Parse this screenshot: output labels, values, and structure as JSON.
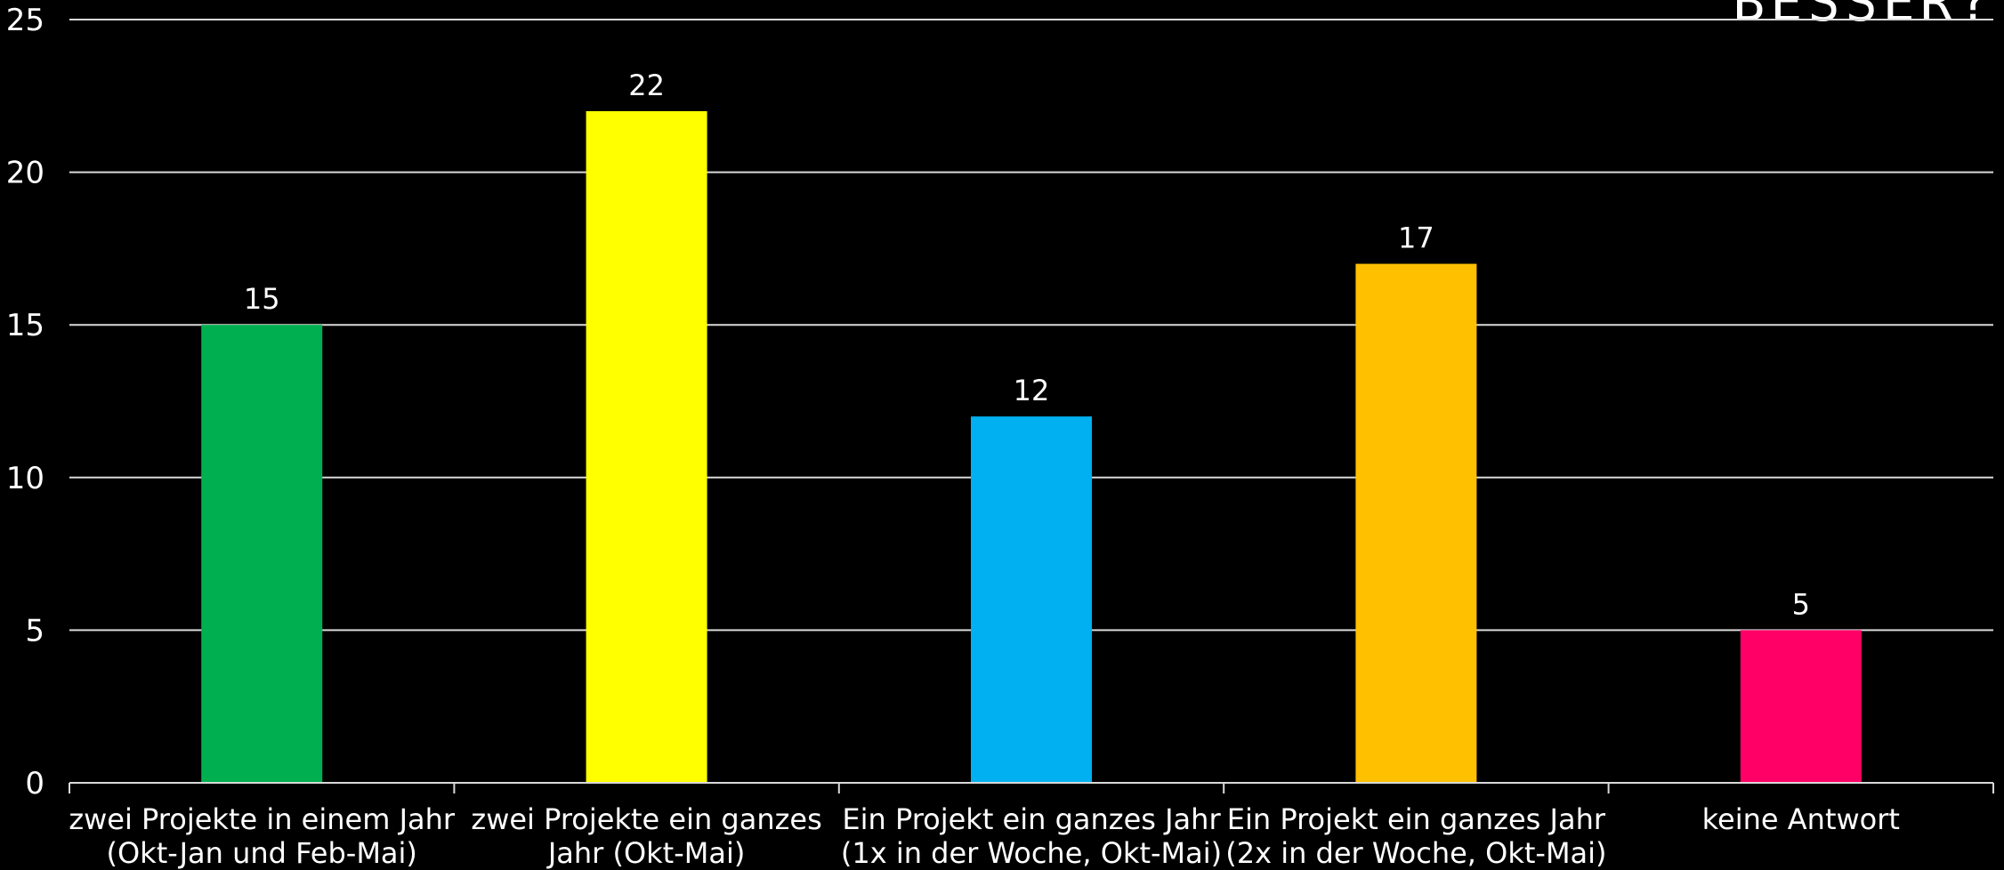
{
  "title_fragment": "BESSER?",
  "chart_data": {
    "type": "bar",
    "categories": [
      [
        "zwei Projekte in einem Jahr",
        "(Okt-Jan und Feb-Mai)"
      ],
      [
        "zwei Projekte ein ganzes",
        "Jahr (Okt-Mai)"
      ],
      [
        "Ein Projekt ein ganzes Jahr",
        "(1x in der Woche, Okt-Mai)"
      ],
      [
        "Ein Projekt ein ganzes Jahr",
        "(2x in der Woche, Okt-Mai)"
      ],
      [
        "keine Antwort"
      ]
    ],
    "values": [
      15,
      22,
      12,
      17,
      5
    ],
    "colors": [
      "#00b050",
      "#ffff00",
      "#00b0f0",
      "#ffc000",
      "#ff0066"
    ],
    "ylim": [
      0,
      25
    ],
    "yticks": [
      0,
      5,
      10,
      15,
      20,
      25
    ],
    "grid": true,
    "data_labels": true,
    "background": "#000000",
    "text_color": "#ffffff"
  }
}
